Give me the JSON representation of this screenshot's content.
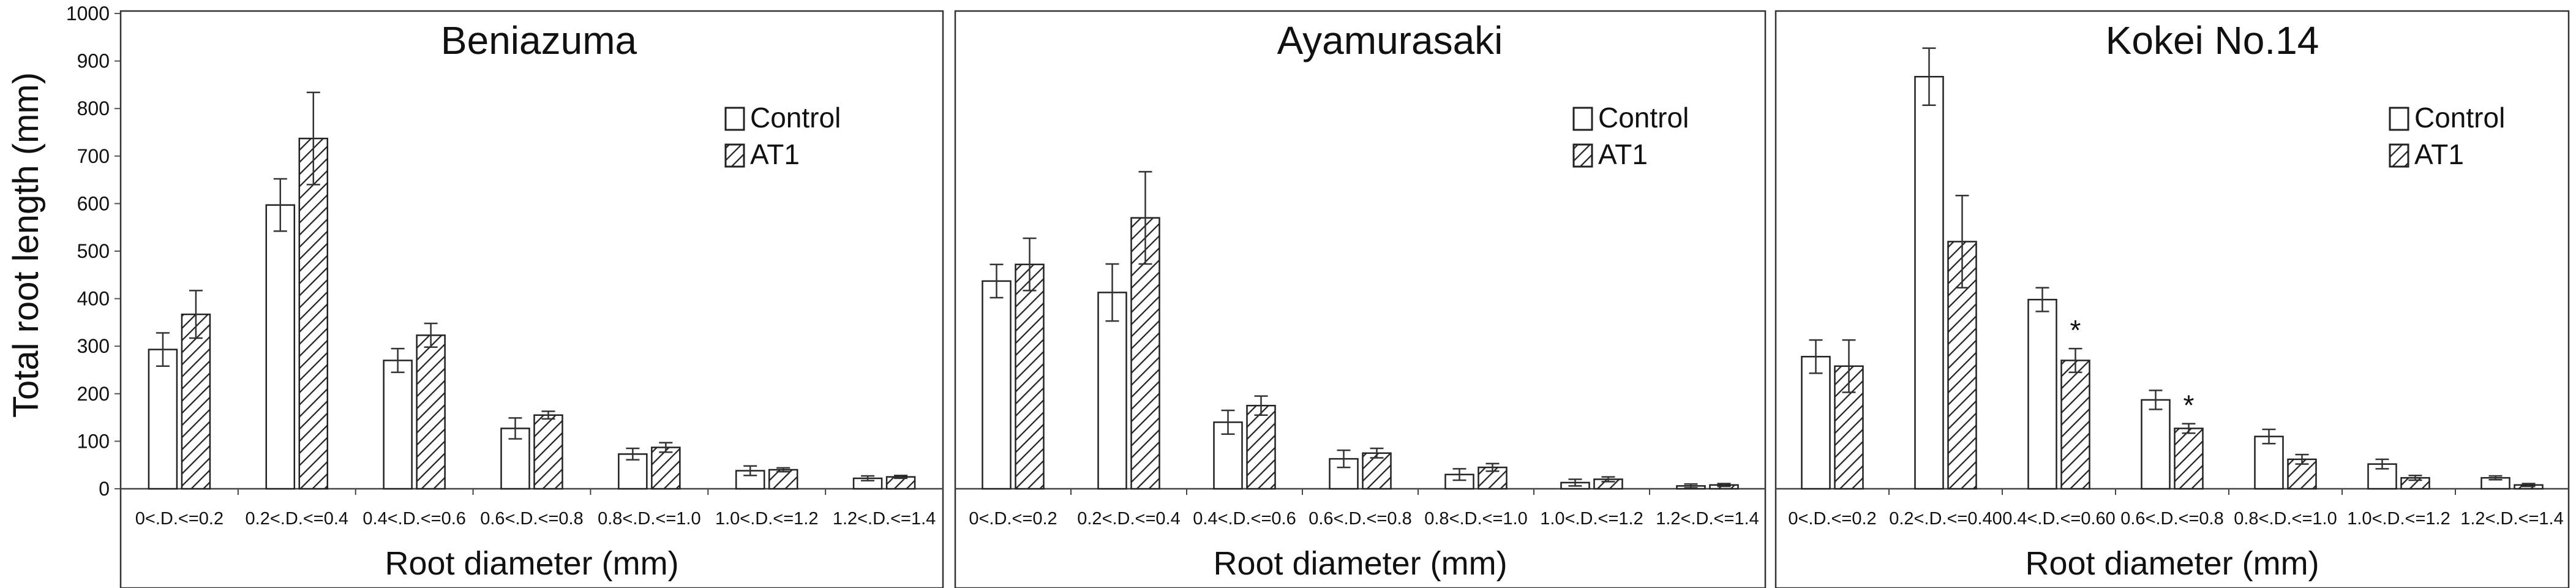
{
  "figure": {
    "ylabel": "Total root length (mm)"
  },
  "chart_data": [
    {
      "type": "bar",
      "title": "Beniazuma",
      "xlabel": "Root diameter (mm)",
      "ylabel": "Total root length (mm)",
      "ylim": [
        0,
        1000
      ],
      "yticks": [
        0,
        100,
        200,
        300,
        400,
        500,
        600,
        700,
        800,
        900,
        1000
      ],
      "legend_position": "top-right",
      "categories": [
        "0<.D.<=0.2",
        "0.2<.D.<=0.4",
        "0.4<.D.<=0.6",
        "0.6<.D.<=0.8",
        "0.8<.D.<=1.0",
        "1.0<.D.<=1.2",
        "1.2<.D.<=1.4"
      ],
      "series": [
        {
          "name": "Control",
          "pattern": "open",
          "values": [
            293,
            597,
            270,
            127,
            73,
            38,
            22
          ],
          "errors": [
            35,
            55,
            25,
            22,
            12,
            10,
            5
          ]
        },
        {
          "name": "AT1",
          "pattern": "hatched",
          "values": [
            367,
            737,
            323,
            155,
            87,
            40,
            25
          ],
          "errors": [
            50,
            97,
            25,
            8,
            10,
            4,
            3
          ]
        }
      ],
      "annotations": []
    },
    {
      "type": "bar",
      "title": "Ayamurasaki",
      "xlabel": "Root diameter (mm)",
      "ylabel": "",
      "ylim": [
        0,
        1000
      ],
      "legend_position": "top-right",
      "categories": [
        "0<.D.<=0.2",
        "0.2<.D.<=0.4",
        "0.4<.D.<=0.6",
        "0.6<.D.<=0.8",
        "0.8<.D.<=1.0",
        "1.0<.D.<=1.2",
        "1.2<.D.<=1.4"
      ],
      "series": [
        {
          "name": "Control",
          "pattern": "open",
          "values": [
            437,
            413,
            140,
            63,
            30,
            13,
            6
          ],
          "errors": [
            35,
            60,
            25,
            18,
            12,
            7,
            4
          ]
        },
        {
          "name": "AT1",
          "pattern": "hatched",
          "values": [
            472,
            570,
            175,
            75,
            45,
            20,
            8
          ],
          "errors": [
            55,
            97,
            20,
            10,
            8,
            5,
            3
          ]
        }
      ],
      "annotations": []
    },
    {
      "type": "bar",
      "title": "Kokei No.14",
      "xlabel": "Root diameter (mm)",
      "ylabel": "",
      "ylim": [
        0,
        1000
      ],
      "legend_position": "top-right",
      "categories": [
        "0<.D.<=0.2",
        "0.2<.D.<=0.40",
        "0.4<.D.<=0.60",
        "0.6<.D.<=0.8",
        "0.8<.D.<=1.0",
        "1.0<.D.<=1.2",
        "1.2<.D.<=1.4"
      ],
      "series": [
        {
          "name": "Control",
          "pattern": "open",
          "values": [
            278,
            867,
            398,
            187,
            110,
            52,
            23
          ],
          "errors": [
            35,
            60,
            25,
            20,
            15,
            10,
            4
          ]
        },
        {
          "name": "AT1",
          "pattern": "hatched",
          "values": [
            258,
            520,
            270,
            127,
            62,
            23,
            8
          ],
          "errors": [
            55,
            97,
            25,
            10,
            10,
            5,
            3
          ]
        }
      ],
      "annotations": [
        {
          "category_index": 2,
          "series": "AT1",
          "text": "*"
        },
        {
          "category_index": 3,
          "series": "AT1",
          "text": "*"
        }
      ]
    }
  ]
}
